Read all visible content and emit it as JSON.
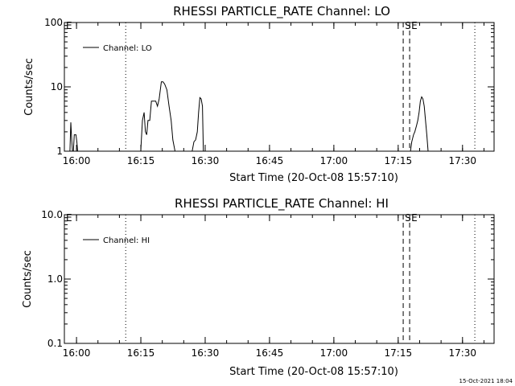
{
  "chart_data": [
    {
      "type": "line",
      "title": "RHESSI PARTICLE_RATE Channel: LO",
      "xlabel": "Start Time (20-Oct-08 15:57:10)",
      "ylabel": "Counts/sec",
      "ylog": true,
      "ylim": [
        1,
        100
      ],
      "xlim_minutes": [
        0,
        40.3
      ],
      "x_ticks": [
        {
          "t": 2.83,
          "label": "16:00"
        },
        {
          "t": 17.83,
          "label": "16:15"
        },
        {
          "t": 32.83,
          "label": "16:30"
        },
        {
          "t": 47.83,
          "label": "16:45"
        },
        {
          "t": 62.83,
          "label": "17:00"
        },
        {
          "t": 77.83,
          "label": "17:15"
        },
        {
          "t": 92.83,
          "label": "17:30"
        }
      ],
      "y_ticks": [
        {
          "v": 1,
          "label": "1"
        },
        {
          "v": 10,
          "label": "10"
        },
        {
          "v": 100,
          "label": "100"
        }
      ],
      "legend": {
        "label": "Channel: LO",
        "placement": "top-left"
      },
      "markers": [
        {
          "t": 0,
          "label": "E",
          "style": "dotted"
        },
        {
          "t": 14.3,
          "label": "",
          "style": "dotted"
        },
        {
          "t": 79.0,
          "label": "S",
          "style": "dashed"
        },
        {
          "t": 80.5,
          "label": "E",
          "style": "dashed"
        },
        {
          "t": 95.7,
          "label": "",
          "style": "dotted"
        }
      ],
      "series": [
        {
          "t": [
            0,
            1.3,
            1.5,
            1.7,
            1.9,
            2.1,
            2.3,
            2.5,
            2.7,
            2.9,
            3.1,
            3.2,
            3.4,
            3.6,
            3.7,
            4.0,
            17.3,
            17.8,
            18.2,
            18.6,
            18.9,
            19.2,
            19.5,
            19.9,
            20.3,
            20.8,
            21.3,
            21.7,
            22.1,
            22.6,
            23.0,
            23.4,
            23.9,
            24.4,
            24.9,
            25.3,
            25.8,
            28.0,
            28.2,
            28.5,
            28.9,
            29.3,
            29.8,
            30.2,
            30.6,
            31.0,
            31.3,
            31.6,
            31.9,
            32.2,
            32.4,
            77.0,
            79.7,
            80.0,
            80.3,
            80.7,
            81.0,
            81.4,
            81.7,
            82.1,
            82.4,
            82.7,
            83.0,
            83.3,
            83.6,
            83.9,
            84.2,
            84.5,
            84.8,
            85.1,
            85.3,
            85.6,
            85.9,
            86.2,
            86.5,
            86.7,
            87.0
          ],
          "values": [
            1,
            1,
            2.8,
            1.5,
            1,
            1,
            1.8,
            1.8,
            1.8,
            1.4,
            1,
            1,
            1,
            1,
            1,
            1,
            1,
            1,
            3,
            4,
            2,
            1.8,
            3,
            3,
            6,
            6,
            6,
            5,
            6.5,
            12,
            12,
            11,
            9,
            5,
            3,
            1.5,
            1,
            1,
            1,
            1,
            1,
            1,
            1,
            1.4,
            1.5,
            2,
            4,
            6.8,
            6.5,
            5,
            1,
            1,
            1,
            1,
            1,
            1,
            1.4,
            1.8,
            2,
            2.5,
            3,
            4,
            6,
            7,
            6.5,
            5,
            3,
            1.8,
            1,
            1,
            1,
            1,
            1,
            1,
            1,
            1,
            1
          ]
        }
      ]
    },
    {
      "type": "line",
      "title": "RHESSI PARTICLE_RATE Channel: HI",
      "xlabel": "Start Time (20-Oct-08 15:57:10)",
      "ylabel": "Counts/sec",
      "ylog": true,
      "ylim": [
        0.1,
        10
      ],
      "x_ticks": [
        {
          "t": 2.83,
          "label": "16:00"
        },
        {
          "t": 17.83,
          "label": "16:15"
        },
        {
          "t": 32.83,
          "label": "16:30"
        },
        {
          "t": 47.83,
          "label": "16:45"
        },
        {
          "t": 62.83,
          "label": "17:00"
        },
        {
          "t": 77.83,
          "label": "17:15"
        },
        {
          "t": 92.83,
          "label": "17:30"
        }
      ],
      "y_ticks": [
        {
          "v": 0.1,
          "label": "0.1"
        },
        {
          "v": 1,
          "label": "1.0"
        },
        {
          "v": 10,
          "label": "10.0"
        }
      ],
      "legend": {
        "label": "Channel: HI",
        "placement": "top-left"
      },
      "markers": [
        {
          "t": 0,
          "label": "E",
          "style": "dotted"
        },
        {
          "t": 14.3,
          "label": "",
          "style": "dotted"
        },
        {
          "t": 79.0,
          "label": "S",
          "style": "dashed"
        },
        {
          "t": 80.5,
          "label": "E",
          "style": "dashed"
        },
        {
          "t": 95.7,
          "label": "",
          "style": "dotted"
        }
      ],
      "series": []
    }
  ],
  "footer": {
    "timestamp": "15-Oct-2021 18:04"
  }
}
